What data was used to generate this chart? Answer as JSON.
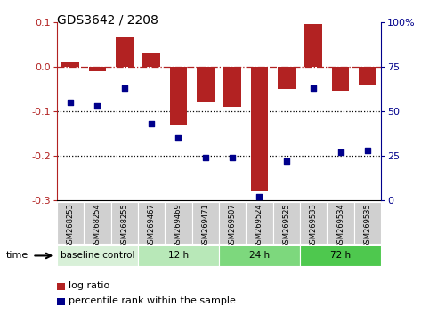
{
  "title": "GDS3642 / 2208",
  "categories": [
    "GSM268253",
    "GSM268254",
    "GSM268255",
    "GSM269467",
    "GSM269469",
    "GSM269471",
    "GSM269507",
    "GSM269524",
    "GSM269525",
    "GSM269533",
    "GSM269534",
    "GSM269535"
  ],
  "log_ratio": [
    0.01,
    -0.01,
    0.065,
    0.03,
    -0.13,
    -0.08,
    -0.09,
    -0.28,
    -0.05,
    0.095,
    -0.055,
    -0.04
  ],
  "percentile_rank": [
    55,
    53,
    63,
    43,
    35,
    24,
    24,
    2,
    22,
    63,
    27,
    28
  ],
  "bar_color": "#b22222",
  "dot_color": "#00008b",
  "ylim_left": [
    -0.3,
    0.1
  ],
  "ylim_right": [
    0,
    100
  ],
  "hline_y": 0,
  "dotted_lines": [
    -0.1,
    -0.2
  ],
  "groups": [
    {
      "label": "baseline control",
      "start": 0,
      "end": 3
    },
    {
      "label": "12 h",
      "start": 3,
      "end": 6
    },
    {
      "label": "24 h",
      "start": 6,
      "end": 9
    },
    {
      "label": "72 h",
      "start": 9,
      "end": 12
    }
  ],
  "group_colors": [
    "#d8f0d8",
    "#b8e8b8",
    "#7dd87d",
    "#4ec84e"
  ],
  "legend_labels": [
    "log ratio",
    "percentile rank within the sample"
  ],
  "time_label": "time",
  "bar_width": 0.65,
  "bg_color": "#ffffff"
}
